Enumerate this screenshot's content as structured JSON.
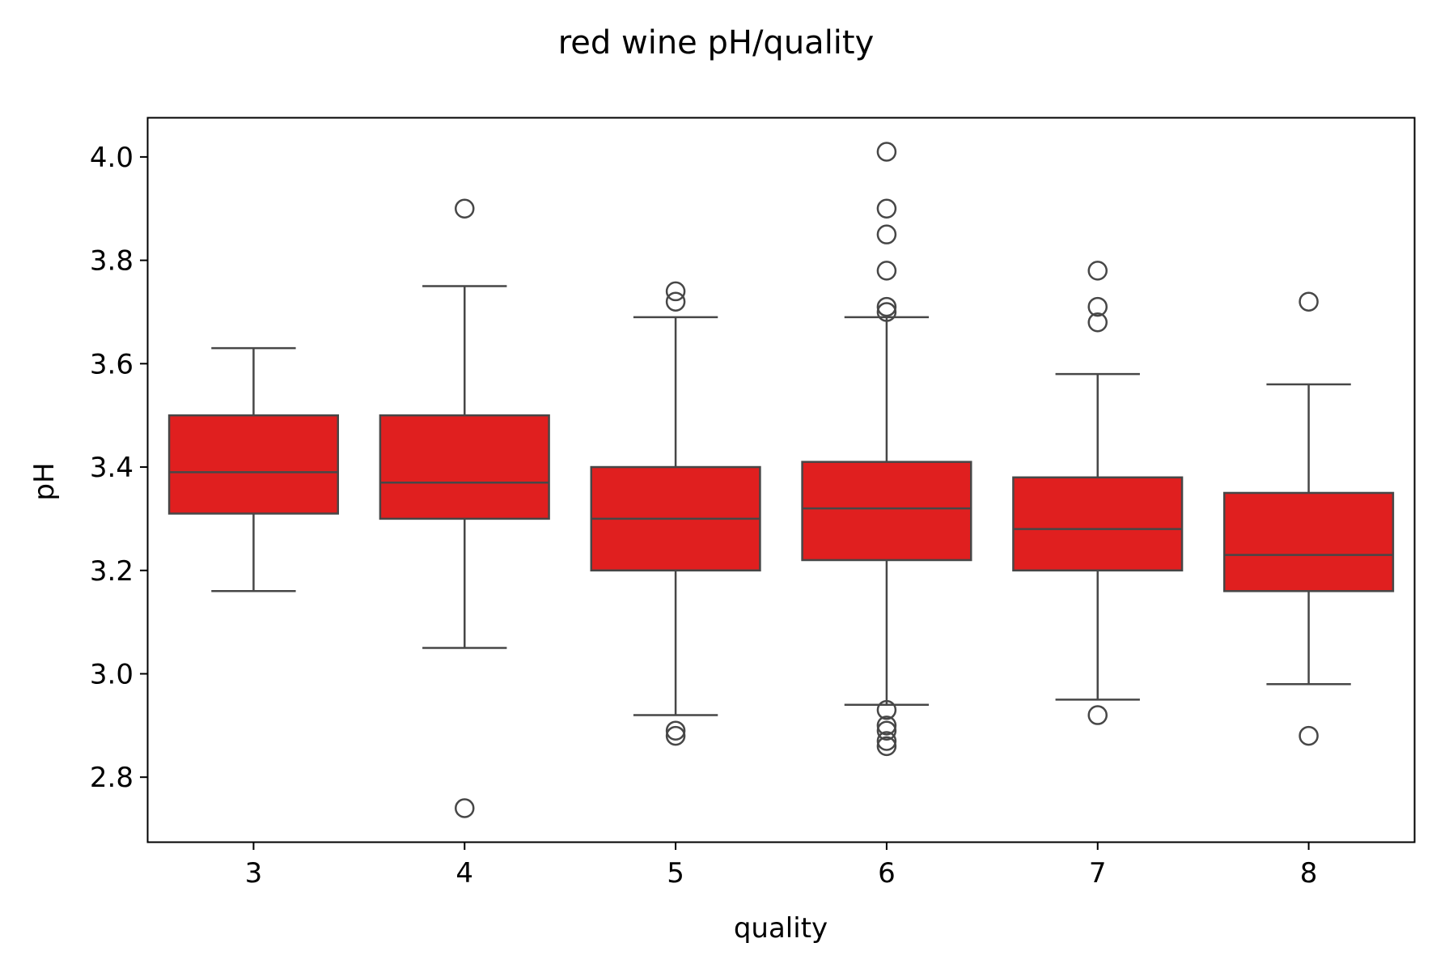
{
  "chart_data": {
    "type": "box",
    "title": "red wine pH/quality",
    "xlabel": "quality",
    "ylabel": "pH",
    "ylim": [
      2.675,
      4.075
    ],
    "yticks": [
      "2.8",
      "3.0",
      "3.2",
      "3.4",
      "3.6",
      "3.8",
      "4.0"
    ],
    "box_color": "#e01f1f",
    "line_color": "#474747",
    "grid": false,
    "categories": [
      "3",
      "4",
      "5",
      "6",
      "7",
      "8"
    ],
    "boxes": [
      {
        "category": "3",
        "whisker_low": 3.16,
        "q1": 3.31,
        "median": 3.39,
        "q3": 3.5,
        "whisker_high": 3.63,
        "outliers": []
      },
      {
        "category": "4",
        "whisker_low": 3.05,
        "q1": 3.3,
        "median": 3.37,
        "q3": 3.5,
        "whisker_high": 3.75,
        "outliers": [
          3.9,
          2.74
        ]
      },
      {
        "category": "5",
        "whisker_low": 2.92,
        "q1": 3.2,
        "median": 3.3,
        "q3": 3.4,
        "whisker_high": 3.69,
        "outliers": [
          3.74,
          3.72,
          2.89,
          2.88
        ]
      },
      {
        "category": "6",
        "whisker_low": 2.94,
        "q1": 3.22,
        "median": 3.32,
        "q3": 3.41,
        "whisker_high": 3.69,
        "outliers": [
          4.01,
          3.9,
          3.85,
          3.78,
          3.71,
          3.7,
          2.93,
          2.9,
          2.89,
          2.87,
          2.86
        ]
      },
      {
        "category": "7",
        "whisker_low": 2.95,
        "q1": 3.2,
        "median": 3.28,
        "q3": 3.38,
        "whisker_high": 3.58,
        "outliers": [
          3.78,
          3.71,
          3.68,
          2.92
        ]
      },
      {
        "category": "8",
        "whisker_low": 2.98,
        "q1": 3.16,
        "median": 3.23,
        "q3": 3.35,
        "whisker_high": 3.56,
        "outliers": [
          3.72,
          2.88
        ]
      }
    ]
  }
}
